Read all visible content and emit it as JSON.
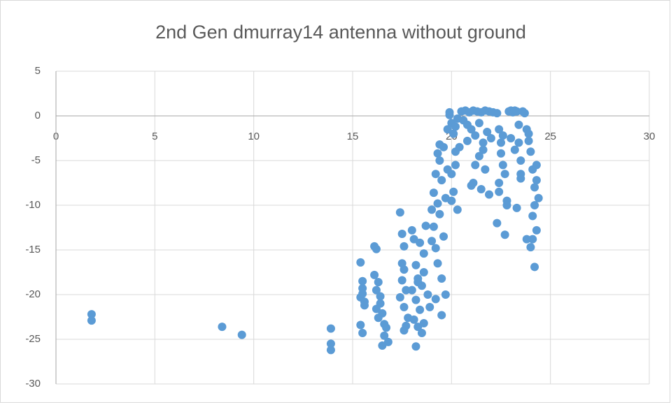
{
  "chart_data": {
    "type": "scatter",
    "title": "2nd Gen dmurray14 antenna without ground",
    "color": "#5b9bd5",
    "grid": true,
    "xlim": [
      0,
      30
    ],
    "xticks": [
      0,
      5,
      10,
      15,
      20,
      25,
      30
    ],
    "ylim": [
      -30,
      5
    ],
    "yticks": [
      -30,
      -25,
      -20,
      -15,
      -10,
      -5,
      0,
      5
    ],
    "x": [
      1.8,
      1.8,
      8.4,
      9.4,
      13.9,
      13.9,
      13.9,
      15.4,
      15.5,
      15.5,
      15.4,
      15.6,
      15.4,
      15.5,
      15.6,
      15.5,
      16.1,
      16.2,
      16.1,
      16.3,
      16.2,
      16.4,
      16.5,
      16.6,
      16.7,
      16.6,
      16.8,
      16.2,
      16.3,
      16.5,
      16.4,
      17.4,
      17.5,
      17.6,
      17.6,
      17.5,
      17.7,
      17.4,
      17.6,
      17.8,
      17.7,
      17.5,
      17.6,
      18.0,
      18.1,
      18.2,
      18.3,
      18.0,
      18.2,
      18.4,
      18.1,
      18.3,
      18.5,
      18.6,
      18.4,
      18.2,
      18.5,
      18.7,
      18.6,
      18.8,
      18.3,
      18.6,
      18.9,
      19.0,
      19.1,
      19.2,
      19.3,
      19.1,
      19.4,
      19.2,
      19.5,
      19.3,
      19.6,
      19.4,
      19.7,
      19.5,
      19.2,
      19.6,
      19.8,
      19.4,
      19.7,
      19.3,
      19.0,
      19.5,
      19.9,
      20.0,
      20.1,
      20.2,
      20.0,
      20.1,
      20.3,
      19.9,
      20.2,
      20.4,
      20.0,
      20.3,
      20.2,
      19.8,
      20.5,
      20.7,
      20.9,
      21.1,
      21.3,
      21.5,
      21.7,
      21.9,
      22.1,
      20.6,
      20.8,
      21.0,
      21.2,
      21.4,
      21.6,
      21.8,
      22.0,
      21.0,
      21.2,
      21.5,
      21.4,
      21.7,
      21.9,
      20.8,
      21.1,
      21.6,
      22.3,
      22.4,
      22.5,
      22.6,
      22.4,
      22.5,
      22.3,
      22.6,
      22.7,
      22.8,
      22.7,
      22.9,
      23.0,
      23.1,
      23.2,
      23.3,
      23.4,
      23.0,
      23.2,
      23.5,
      23.6,
      23.7,
      23.8,
      23.5,
      23.3,
      23.4,
      23.9,
      24.0,
      24.1,
      24.2,
      24.3,
      24.2,
      24.1,
      24.3,
      24.4,
      24.0,
      24.2,
      23.9,
      24.1,
      24.3,
      22.4,
      22.8,
      23.5,
      23.8
    ],
    "y": [
      -22.2,
      -22.9,
      -23.6,
      -24.5,
      -23.8,
      -25.5,
      -26.2,
      -16.4,
      -18.5,
      -19.3,
      -20.3,
      -20.8,
      -23.4,
      -24.3,
      -21.2,
      -19.9,
      -14.6,
      -14.9,
      -17.8,
      -18.6,
      -19.5,
      -21.0,
      -22.1,
      -23.3,
      -23.7,
      -24.6,
      -25.3,
      -21.6,
      -22.6,
      -25.7,
      -20.2,
      -10.8,
      -13.2,
      -14.6,
      -17.2,
      -18.4,
      -19.5,
      -20.3,
      -21.4,
      -22.6,
      -23.5,
      -16.5,
      -24.0,
      -12.8,
      -13.8,
      -16.7,
      -18.2,
      -19.5,
      -20.6,
      -21.7,
      -22.8,
      -23.6,
      -24.3,
      -17.5,
      -14.2,
      -25.8,
      -19.0,
      -12.3,
      -15.4,
      -20.0,
      -18.6,
      -23.2,
      -21.4,
      -10.5,
      -8.6,
      -6.5,
      -4.2,
      -12.4,
      -5.0,
      -14.8,
      -7.2,
      -16.5,
      -3.5,
      -11.0,
      -9.2,
      -18.2,
      -20.5,
      -13.5,
      -6.0,
      -3.2,
      -20.0,
      -9.8,
      -14.0,
      -22.3,
      0.4,
      -0.8,
      -2.0,
      -4.0,
      -6.5,
      -8.5,
      -10.5,
      0.1,
      -1.2,
      -3.5,
      -9.5,
      -0.3,
      -5.5,
      -1.5,
      0.5,
      0.6,
      0.4,
      0.6,
      0.5,
      0.4,
      0.6,
      0.5,
      0.4,
      -0.5,
      -1.0,
      -1.5,
      -2.2,
      -0.8,
      -3.0,
      -1.8,
      -2.5,
      -7.8,
      -5.5,
      -8.2,
      -4.5,
      -6.0,
      -8.8,
      -2.8,
      -7.5,
      -3.8,
      0.3,
      -1.5,
      -3.0,
      -5.5,
      -7.5,
      -4.2,
      -12.0,
      -2.2,
      -6.5,
      -9.5,
      -13.3,
      0.5,
      0.6,
      0.4,
      0.6,
      0.5,
      -1.0,
      -2.5,
      -3.8,
      -5.0,
      0.5,
      0.3,
      -1.5,
      -7.0,
      -10.3,
      -3.0,
      -2.0,
      -4.0,
      -6.0,
      -8.0,
      -5.5,
      -10.0,
      -13.8,
      -12.8,
      -9.2,
      -14.7,
      -16.9,
      -2.8,
      -11.2,
      -7.2,
      -8.5,
      -10.0,
      -6.5,
      -13.8
    ]
  }
}
